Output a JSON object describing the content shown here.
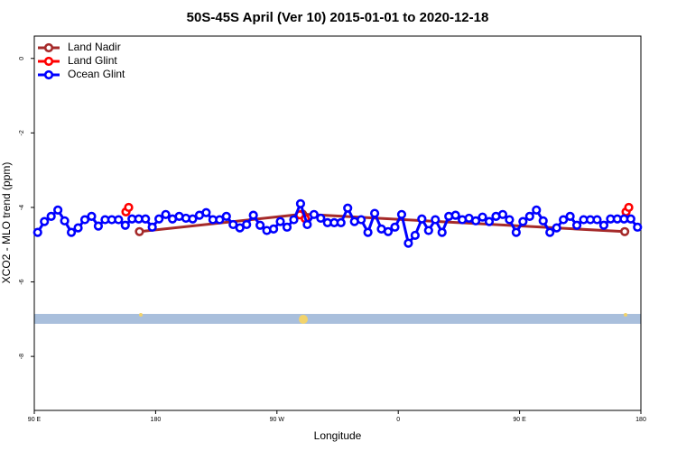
{
  "chart_data": {
    "type": "line",
    "title": "50S-45S April (Ver 10)   2015-01-01 to 2020-12-18",
    "xlabel": "Longitude",
    "ylabel": "XCO2 - MLO trend (ppm)",
    "xlim": [
      90,
      540
    ],
    "ylim": [
      -9.45,
      0.6
    ],
    "xticks": [
      {
        "value": 90,
        "label": "90 E"
      },
      180,
      {
        "value": 270,
        "label": "90 W"
      },
      {
        "value": 360,
        "label": "0"
      },
      {
        "value": 450,
        "label": "90 E"
      },
      {
        "value": 540,
        "label": "180"
      }
    ],
    "yticks": [
      0,
      -2,
      -4,
      -6,
      -8
    ],
    "legend": "top-left",
    "series": [
      {
        "name": "Land Nadir",
        "color": "#a52a2a",
        "x": [
          168,
          289,
          528
        ],
        "values": [
          -4.65,
          -4.18,
          -4.65
        ]
      },
      {
        "name": "Land Glint",
        "color": "#ff0000",
        "x": [
          158,
          160,
          225,
          287,
          291,
          410,
          529,
          531
        ],
        "values": [
          -4.12,
          -4.0,
          null,
          -4.2,
          -4.3,
          null,
          -4.12,
          -4.0
        ]
      },
      {
        "name": "Ocean Glint",
        "color": "#0000ff",
        "x": [
          92.5,
          97.5,
          102.5,
          107.5,
          112.5,
          117.5,
          122.5,
          127.5,
          132.5,
          137.5,
          142.5,
          147.5,
          152.5,
          157.5,
          162.5,
          167.5,
          172.5,
          177.5,
          182.5,
          187.5,
          192.5,
          197.5,
          202.5,
          207.5,
          212.5,
          217.5,
          222.5,
          227.5,
          232.5,
          237.5,
          242.5,
          247.5,
          252.5,
          257.5,
          262.5,
          267.5,
          272.5,
          277.5,
          282.5,
          287.5,
          292.5,
          297.5,
          302.5,
          307.5,
          312.5,
          317.5,
          322.5,
          327.5,
          332.5,
          337.5,
          342.5,
          347.5,
          352.5,
          357.5,
          362.5,
          367.5,
          372.5,
          377.5,
          382.5,
          387.5,
          392.5,
          397.5,
          402.5,
          407.5,
          412.5,
          417.5,
          422.5,
          427.5,
          432.5,
          437.5,
          442.5,
          447.5,
          452.5,
          457.5,
          462.5,
          467.5,
          472.5,
          477.5,
          482.5,
          487.5,
          492.5,
          497.5,
          502.5,
          507.5,
          512.5,
          517.5,
          522.5,
          527.5,
          532.5,
          537.5
        ],
        "values": [
          -4.67,
          -4.38,
          -4.24,
          -4.07,
          -4.36,
          -4.67,
          -4.55,
          -4.33,
          -4.24,
          -4.5,
          -4.33,
          -4.33,
          -4.33,
          -4.48,
          -4.31,
          -4.31,
          -4.31,
          -4.53,
          -4.31,
          -4.19,
          -4.31,
          -4.24,
          -4.29,
          -4.31,
          -4.21,
          -4.14,
          -4.33,
          -4.33,
          -4.24,
          -4.46,
          -4.55,
          -4.46,
          -4.21,
          -4.48,
          -4.62,
          -4.58,
          -4.38,
          -4.53,
          -4.33,
          -3.9,
          -4.46,
          -4.19,
          -4.29,
          -4.41,
          -4.41,
          -4.41,
          -4.02,
          -4.38,
          -4.33,
          -4.67,
          -4.16,
          -4.58,
          -4.65,
          -4.53,
          -4.19,
          -4.96,
          -4.75,
          -4.31,
          -4.62,
          -4.33,
          -4.67,
          -4.24,
          -4.21,
          -4.33,
          -4.29,
          -4.36,
          -4.26,
          -4.38,
          -4.24,
          -4.19,
          -4.33,
          -4.67,
          -4.38,
          -4.24,
          -4.07,
          -4.36,
          -4.67,
          -4.55,
          -4.33,
          -4.24,
          -4.48,
          -4.33,
          -4.33,
          -4.33,
          -4.48,
          -4.31,
          -4.31,
          -4.31,
          -4.31,
          -4.53
        ]
      }
    ]
  }
}
